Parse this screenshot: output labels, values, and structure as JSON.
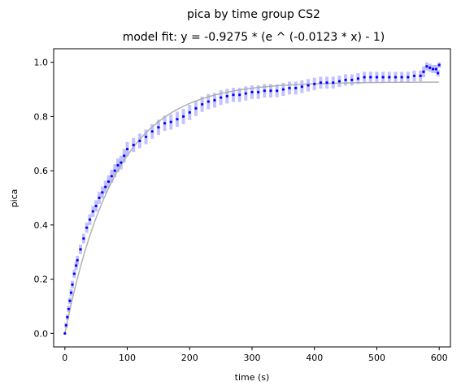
{
  "chart_data": {
    "type": "scatter",
    "title": "pica by time group CS2",
    "subtitle": "model fit: y = -0.9275 * (e ^ (-0.0123 * x) - 1)",
    "xlabel": "time (s)",
    "ylabel": "pica",
    "xlim": [
      -18,
      618
    ],
    "ylim": [
      -0.05,
      1.05
    ],
    "xticks": [
      0,
      100,
      200,
      300,
      400,
      500,
      600
    ],
    "yticks": [
      0.0,
      0.2,
      0.4,
      0.6,
      0.8,
      1.0
    ],
    "xtick_labels": [
      "0",
      "100",
      "200",
      "300",
      "400",
      "500",
      "600"
    ],
    "ytick_labels": [
      "0.0",
      "0.2",
      "0.4",
      "0.6",
      "0.8",
      "1.0"
    ],
    "grid": false,
    "legend": "none",
    "model": {
      "a": 0.9275,
      "k": 0.0123
    },
    "colors": {
      "points": "#0000ff",
      "error_band": "#9999ff",
      "fit_line": "#aaaaaa"
    },
    "series": [
      {
        "x": [
          0,
          2,
          4,
          6,
          8,
          10,
          12,
          15,
          18,
          20,
          25,
          30,
          35,
          40,
          45,
          50,
          55,
          60,
          65,
          70,
          75,
          80,
          85,
          90,
          95,
          100,
          110,
          120,
          130,
          140,
          150,
          160,
          170,
          180,
          190,
          200,
          210,
          220,
          230,
          240,
          250,
          260,
          270,
          280,
          290,
          300,
          310,
          320,
          330,
          340,
          350,
          360,
          370,
          380,
          390,
          400,
          410,
          420,
          430,
          440,
          450,
          460,
          470,
          480,
          490,
          500,
          510,
          520,
          530,
          540,
          550,
          560,
          570,
          575,
          580,
          585,
          590,
          595,
          598,
          600
        ],
        "y": [
          0.0,
          0.03,
          0.06,
          0.09,
          0.12,
          0.15,
          0.18,
          0.22,
          0.25,
          0.27,
          0.31,
          0.35,
          0.39,
          0.42,
          0.45,
          0.47,
          0.5,
          0.52,
          0.54,
          0.56,
          0.58,
          0.6,
          0.62,
          0.63,
          0.655,
          0.68,
          0.695,
          0.71,
          0.725,
          0.745,
          0.76,
          0.775,
          0.78,
          0.79,
          0.8,
          0.815,
          0.83,
          0.845,
          0.855,
          0.86,
          0.87,
          0.875,
          0.88,
          0.88,
          0.885,
          0.89,
          0.89,
          0.895,
          0.895,
          0.895,
          0.9,
          0.905,
          0.905,
          0.91,
          0.915,
          0.92,
          0.925,
          0.925,
          0.925,
          0.93,
          0.935,
          0.935,
          0.94,
          0.945,
          0.945,
          0.945,
          0.945,
          0.945,
          0.945,
          0.945,
          0.945,
          0.95,
          0.95,
          0.965,
          0.985,
          0.98,
          0.975,
          0.975,
          0.96,
          0.99
        ],
        "err": [
          0.0,
          0.01,
          0.01,
          0.012,
          0.012,
          0.013,
          0.014,
          0.015,
          0.016,
          0.016,
          0.017,
          0.018,
          0.019,
          0.02,
          0.02,
          0.021,
          0.022,
          0.022,
          0.023,
          0.023,
          0.024,
          0.024,
          0.025,
          0.025,
          0.025,
          0.026,
          0.026,
          0.027,
          0.027,
          0.027,
          0.028,
          0.028,
          0.028,
          0.028,
          0.028,
          0.028,
          0.028,
          0.028,
          0.028,
          0.027,
          0.027,
          0.027,
          0.026,
          0.026,
          0.026,
          0.025,
          0.025,
          0.025,
          0.025,
          0.024,
          0.024,
          0.024,
          0.024,
          0.023,
          0.023,
          0.023,
          0.022,
          0.022,
          0.022,
          0.021,
          0.021,
          0.021,
          0.02,
          0.02,
          0.02,
          0.02,
          0.02,
          0.02,
          0.02,
          0.02,
          0.02,
          0.02,
          0.02,
          0.02,
          0.015,
          0.015,
          0.015,
          0.015,
          0.012,
          0.01
        ]
      }
    ]
  }
}
